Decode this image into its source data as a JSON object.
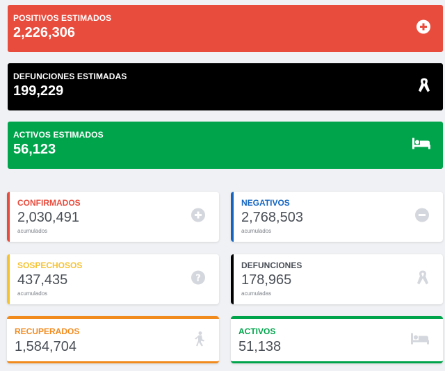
{
  "summary": {
    "positivos": {
      "label": "POSITIVOS ESTIMADOS",
      "value": "2,226,306",
      "color": "#e84c3d",
      "icon": "plus-circle-icon"
    },
    "defunciones": {
      "label": "DEFUNCIONES ESTIMADAS",
      "value": "199,229",
      "color": "#000000",
      "icon": "ribbon-icon"
    },
    "activos": {
      "label": "ACTIVOS ESTIMADOS",
      "value": "56,123",
      "color": "#00a44b",
      "icon": "bed-icon"
    }
  },
  "cards": {
    "confirmados": {
      "label": "CONFIRMADOS",
      "value": "2,030,491",
      "sub": "acumulados",
      "color": "#e84c3d",
      "icon": "plus-circle-icon"
    },
    "negativos": {
      "label": "NEGATIVOS",
      "value": "2,768,503",
      "sub": "acumulados",
      "color": "#1565c0",
      "icon": "minus-circle-icon"
    },
    "sospechosos": {
      "label": "SOSPECHOSOS",
      "value": "437,435",
      "sub": "acumulados",
      "color": "#f5c230",
      "icon": "question-circle-icon"
    },
    "defunciones": {
      "label": "DEFUNCIONES",
      "value": "178,965",
      "sub": "acumuladas",
      "color": "#000000",
      "icon": "ribbon-icon"
    },
    "recuperados": {
      "label": "RECUPERADOS",
      "value": "1,584,704",
      "color": "#f28b1e",
      "icon": "walking-icon"
    },
    "activos": {
      "label": "ACTIVOS",
      "value": "51,138",
      "color": "#00a44b",
      "icon": "bed-icon"
    }
  }
}
